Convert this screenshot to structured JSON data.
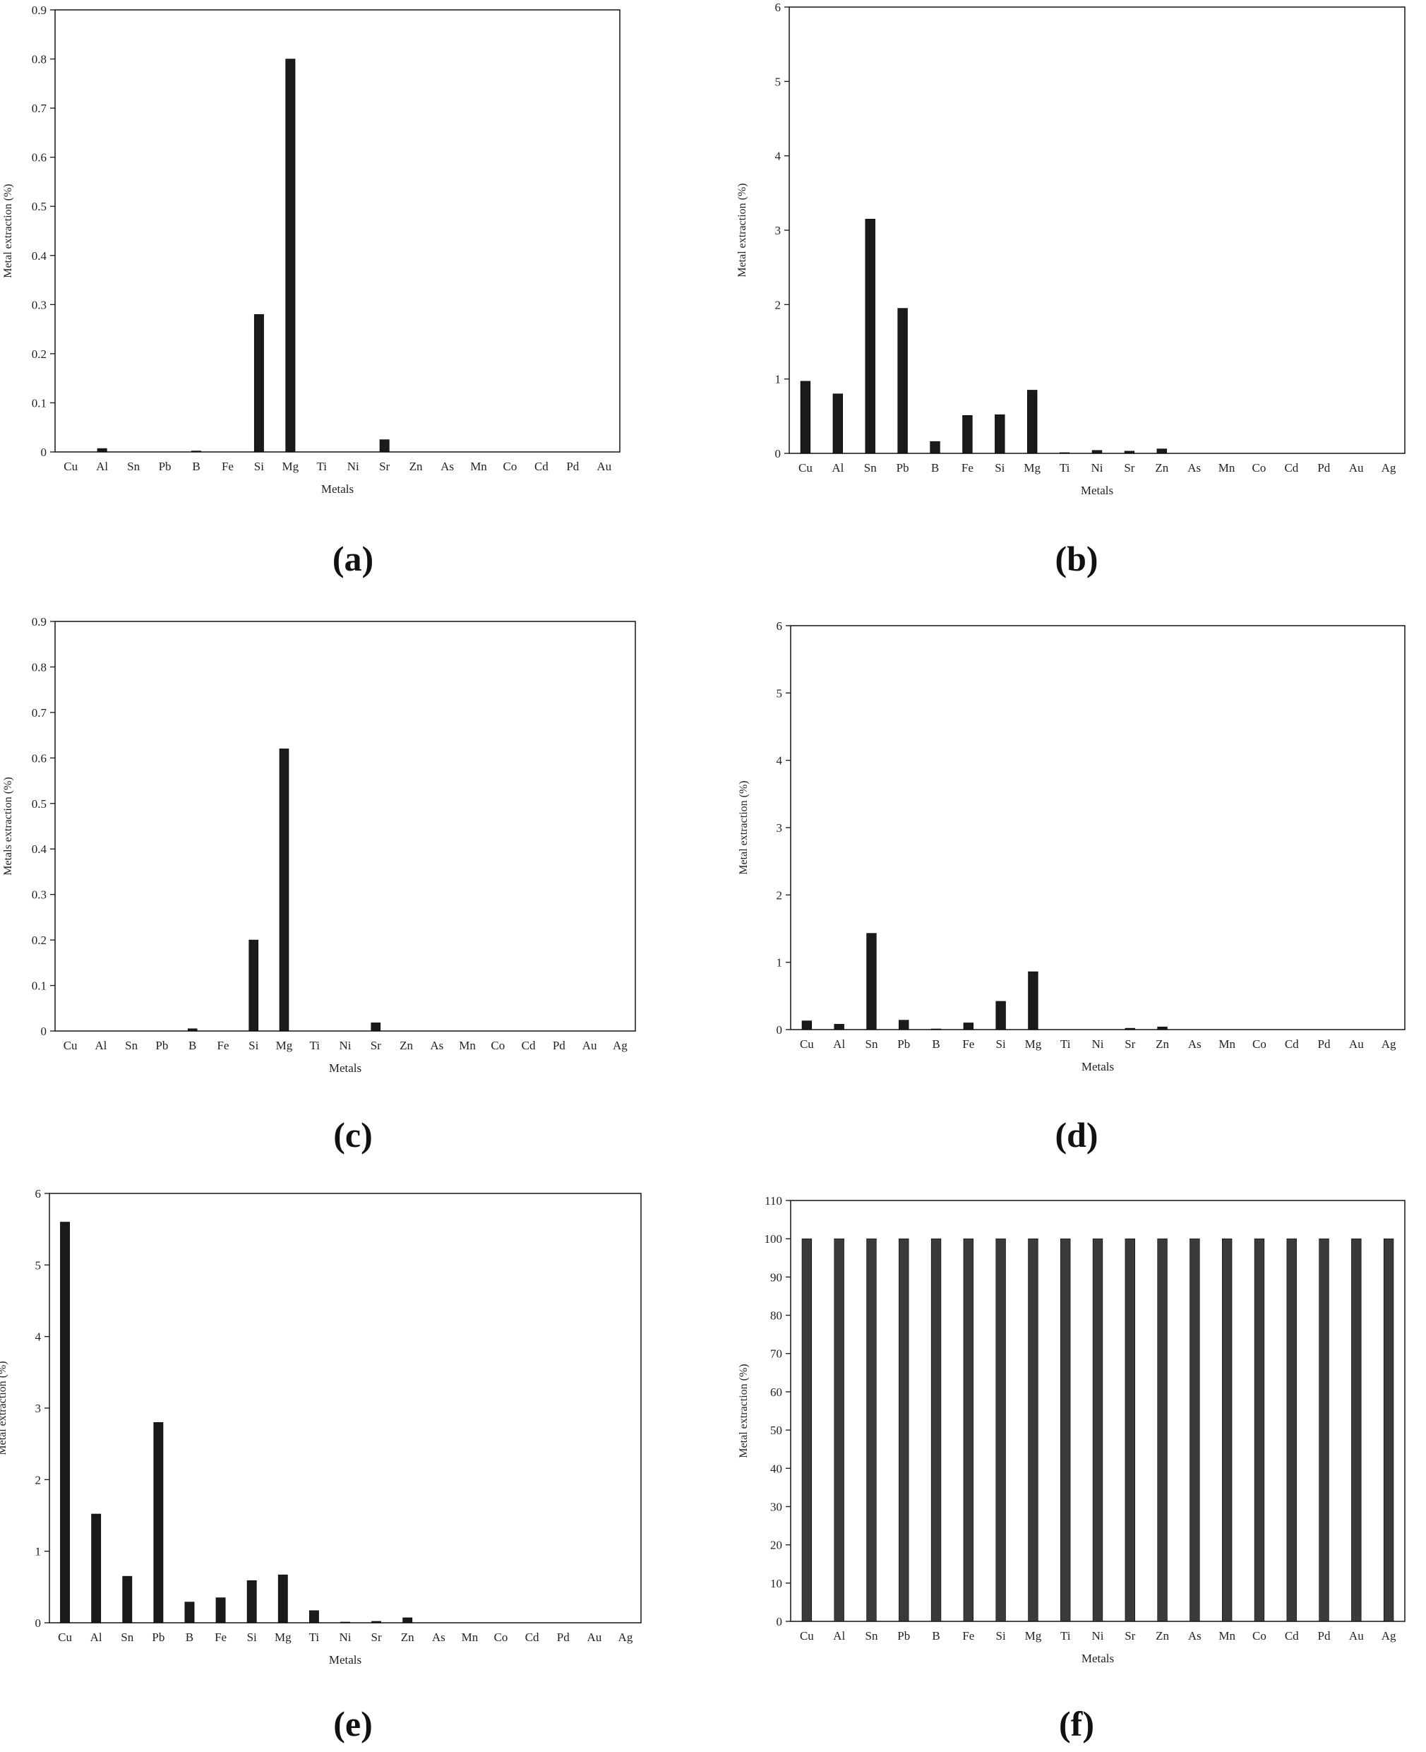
{
  "chart_data": [
    {
      "type": "bar",
      "panel_label": "(a)",
      "categories": [
        "Cu",
        "Al",
        "Sn",
        "Pb",
        "B",
        "Fe",
        "Si",
        "Mg",
        "Ti",
        "Ni",
        "Sr",
        "Zn",
        "As",
        "Mn",
        "Co",
        "Cd",
        "Pd",
        "Au"
      ],
      "values": [
        0,
        0.007,
        0,
        0,
        0.002,
        0,
        0.28,
        0.8,
        0,
        0,
        0.025,
        0,
        0,
        0,
        0,
        0,
        0,
        0
      ],
      "xlabel": "Metals",
      "ylabel": "Metal extraction  (%)",
      "ylim": [
        0,
        0.9
      ],
      "yticks": [
        "0",
        "0.1",
        "0.2",
        "0.3",
        "0.4",
        "0.5",
        "0.6",
        "0.7",
        "0.8",
        "0.9"
      ],
      "grid": false,
      "bar_color": "#1a1a1a"
    },
    {
      "type": "bar",
      "panel_label": "(b)",
      "categories": [
        "Cu",
        "Al",
        "Sn",
        "Pb",
        "B",
        "Fe",
        "Si",
        "Mg",
        "Ti",
        "Ni",
        "Sr",
        "Zn",
        "As",
        "Mn",
        "Co",
        "Cd",
        "Pd",
        "Au",
        "Ag"
      ],
      "values": [
        0.97,
        0.8,
        3.15,
        1.95,
        0.16,
        0.51,
        0.52,
        0.85,
        0.01,
        0.04,
        0.03,
        0.06,
        0,
        0,
        0,
        0,
        0,
        0,
        0
      ],
      "xlabel": "Metals",
      "ylabel": "Metal extraction  (%)",
      "ylim": [
        0,
        6
      ],
      "yticks": [
        "0",
        "1",
        "2",
        "3",
        "4",
        "5",
        "6"
      ],
      "grid": false,
      "bar_color": "#1a1a1a"
    },
    {
      "type": "bar",
      "panel_label": "(c)",
      "categories": [
        "Cu",
        "Al",
        "Sn",
        "Pb",
        "B",
        "Fe",
        "Si",
        "Mg",
        "Ti",
        "Ni",
        "Sr",
        "Zn",
        "As",
        "Mn",
        "Co",
        "Cd",
        "Pd",
        "Au",
        "Ag"
      ],
      "values": [
        0,
        0,
        0,
        0,
        0.005,
        0,
        0.2,
        0.62,
        0,
        0,
        0.018,
        0,
        0,
        0,
        0,
        0,
        0,
        0,
        0
      ],
      "xlabel": "Metals",
      "ylabel": "Metals extraction  (%)",
      "ylim": [
        0,
        0.9
      ],
      "yticks": [
        "0",
        "0.1",
        "0.2",
        "0.3",
        "0.4",
        "0.5",
        "0.6",
        "0.7",
        "0.8",
        "0.9"
      ],
      "grid": false,
      "bar_color": "#1a1a1a"
    },
    {
      "type": "bar",
      "panel_label": "(d)",
      "categories": [
        "Cu",
        "Al",
        "Sn",
        "Pb",
        "B",
        "Fe",
        "Si",
        "Mg",
        "Ti",
        "Ni",
        "Sr",
        "Zn",
        "As",
        "Mn",
        "Co",
        "Cd",
        "Pd",
        "Au",
        "Ag"
      ],
      "values": [
        0.13,
        0.08,
        1.43,
        0.14,
        0.01,
        0.1,
        0.42,
        0.86,
        0,
        0,
        0.02,
        0.04,
        0,
        0,
        0,
        0,
        0,
        0,
        0
      ],
      "xlabel": "Metals",
      "ylabel": "Metal extraction  (%)",
      "ylim": [
        0,
        6
      ],
      "yticks": [
        "0",
        "1",
        "2",
        "3",
        "4",
        "5",
        "6"
      ],
      "grid": false,
      "bar_color": "#1a1a1a"
    },
    {
      "type": "bar",
      "panel_label": "(e)",
      "categories": [
        "Cu",
        "Al",
        "Sn",
        "Pb",
        "B",
        "Fe",
        "Si",
        "Mg",
        "Ti",
        "Ni",
        "Sr",
        "Zn",
        "As",
        "Mn",
        "Co",
        "Cd",
        "Pd",
        "Au",
        "Ag"
      ],
      "values": [
        5.6,
        1.52,
        0.65,
        2.8,
        0.29,
        0.35,
        0.59,
        0.67,
        0.17,
        0.01,
        0.02,
        0.07,
        0,
        0,
        0,
        0,
        0,
        0,
        0
      ],
      "xlabel": "Metals",
      "ylabel": "Metal extraction  (%)",
      "ylim": [
        0,
        6
      ],
      "yticks": [
        "0",
        "1",
        "2",
        "3",
        "4",
        "5",
        "6"
      ],
      "grid": false,
      "bar_color": "#1a1a1a"
    },
    {
      "type": "bar",
      "panel_label": "(f)",
      "categories": [
        "Cu",
        "Al",
        "Sn",
        "Pb",
        "B",
        "Fe",
        "Si",
        "Mg",
        "Ti",
        "Ni",
        "Sr",
        "Zn",
        "As",
        "Mn",
        "Co",
        "Cd",
        "Pd",
        "Au",
        "Ag"
      ],
      "values": [
        100,
        100,
        100,
        100,
        100,
        100,
        100,
        100,
        100,
        100,
        100,
        100,
        100,
        100,
        100,
        100,
        100,
        100,
        100
      ],
      "xlabel": "Metals",
      "ylabel": "Metal extraction  (%)",
      "ylim": [
        0,
        110
      ],
      "yticks": [
        "0",
        "10",
        "20",
        "30",
        "40",
        "50",
        "60",
        "70",
        "80",
        "90",
        "100",
        "110"
      ],
      "grid": false,
      "bar_color": "#3a3a3a"
    }
  ]
}
